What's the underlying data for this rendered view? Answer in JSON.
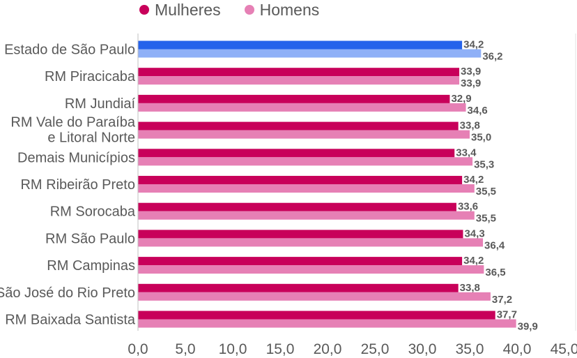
{
  "chart_data": {
    "type": "bar",
    "orientation": "horizontal",
    "categories": [
      [
        "Estado de São Paulo"
      ],
      [
        "RM Piracicaba"
      ],
      [
        "RM Jundiaí"
      ],
      [
        "RM Vale do Paraíba",
        "e Litoral Norte"
      ],
      [
        "Demais Municípios"
      ],
      [
        "RM Ribeirão Preto"
      ],
      [
        "RM Sorocaba"
      ],
      [
        "RM São Paulo"
      ],
      [
        "RM Campinas"
      ],
      [
        "RM São José do Rio Preto"
      ],
      [
        "RM Baixada Santista"
      ]
    ],
    "series": [
      {
        "name": "Mulheres",
        "color": "#c8005a",
        "highlight_color": "#2563eb",
        "values": [
          34.2,
          33.9,
          32.9,
          33.8,
          33.4,
          34.2,
          33.6,
          34.3,
          34.2,
          33.8,
          37.7
        ],
        "labels": [
          "34,2",
          "33,9",
          "32,9",
          "33,8",
          "33,4",
          "34,2",
          "33,6",
          "34,3",
          "34,2",
          "33,8",
          "37,7"
        ]
      },
      {
        "name": "Homens",
        "color": "#e680b5",
        "highlight_color": "#8fb0f7",
        "values": [
          36.2,
          33.9,
          34.6,
          35.0,
          35.3,
          35.5,
          35.5,
          36.4,
          36.5,
          37.2,
          39.9
        ],
        "labels": [
          "36,2",
          "33,9",
          "34,6",
          "35,0",
          "35,3",
          "35,5",
          "35,5",
          "36,4",
          "36,5",
          "37,2",
          "39,9"
        ]
      }
    ],
    "highlighted_category_index": 0,
    "x_ticks": [
      0,
      5,
      10,
      15,
      20,
      25,
      30,
      35,
      40,
      45
    ],
    "x_tick_labels": [
      "0,0",
      "5,0",
      "10,0",
      "15,0",
      "20,0",
      "25,0",
      "30,0",
      "35,0",
      "40,0",
      "45,0"
    ],
    "xlim": [
      0,
      45
    ],
    "grid": "vertical-light",
    "legend_position": "top-left"
  }
}
